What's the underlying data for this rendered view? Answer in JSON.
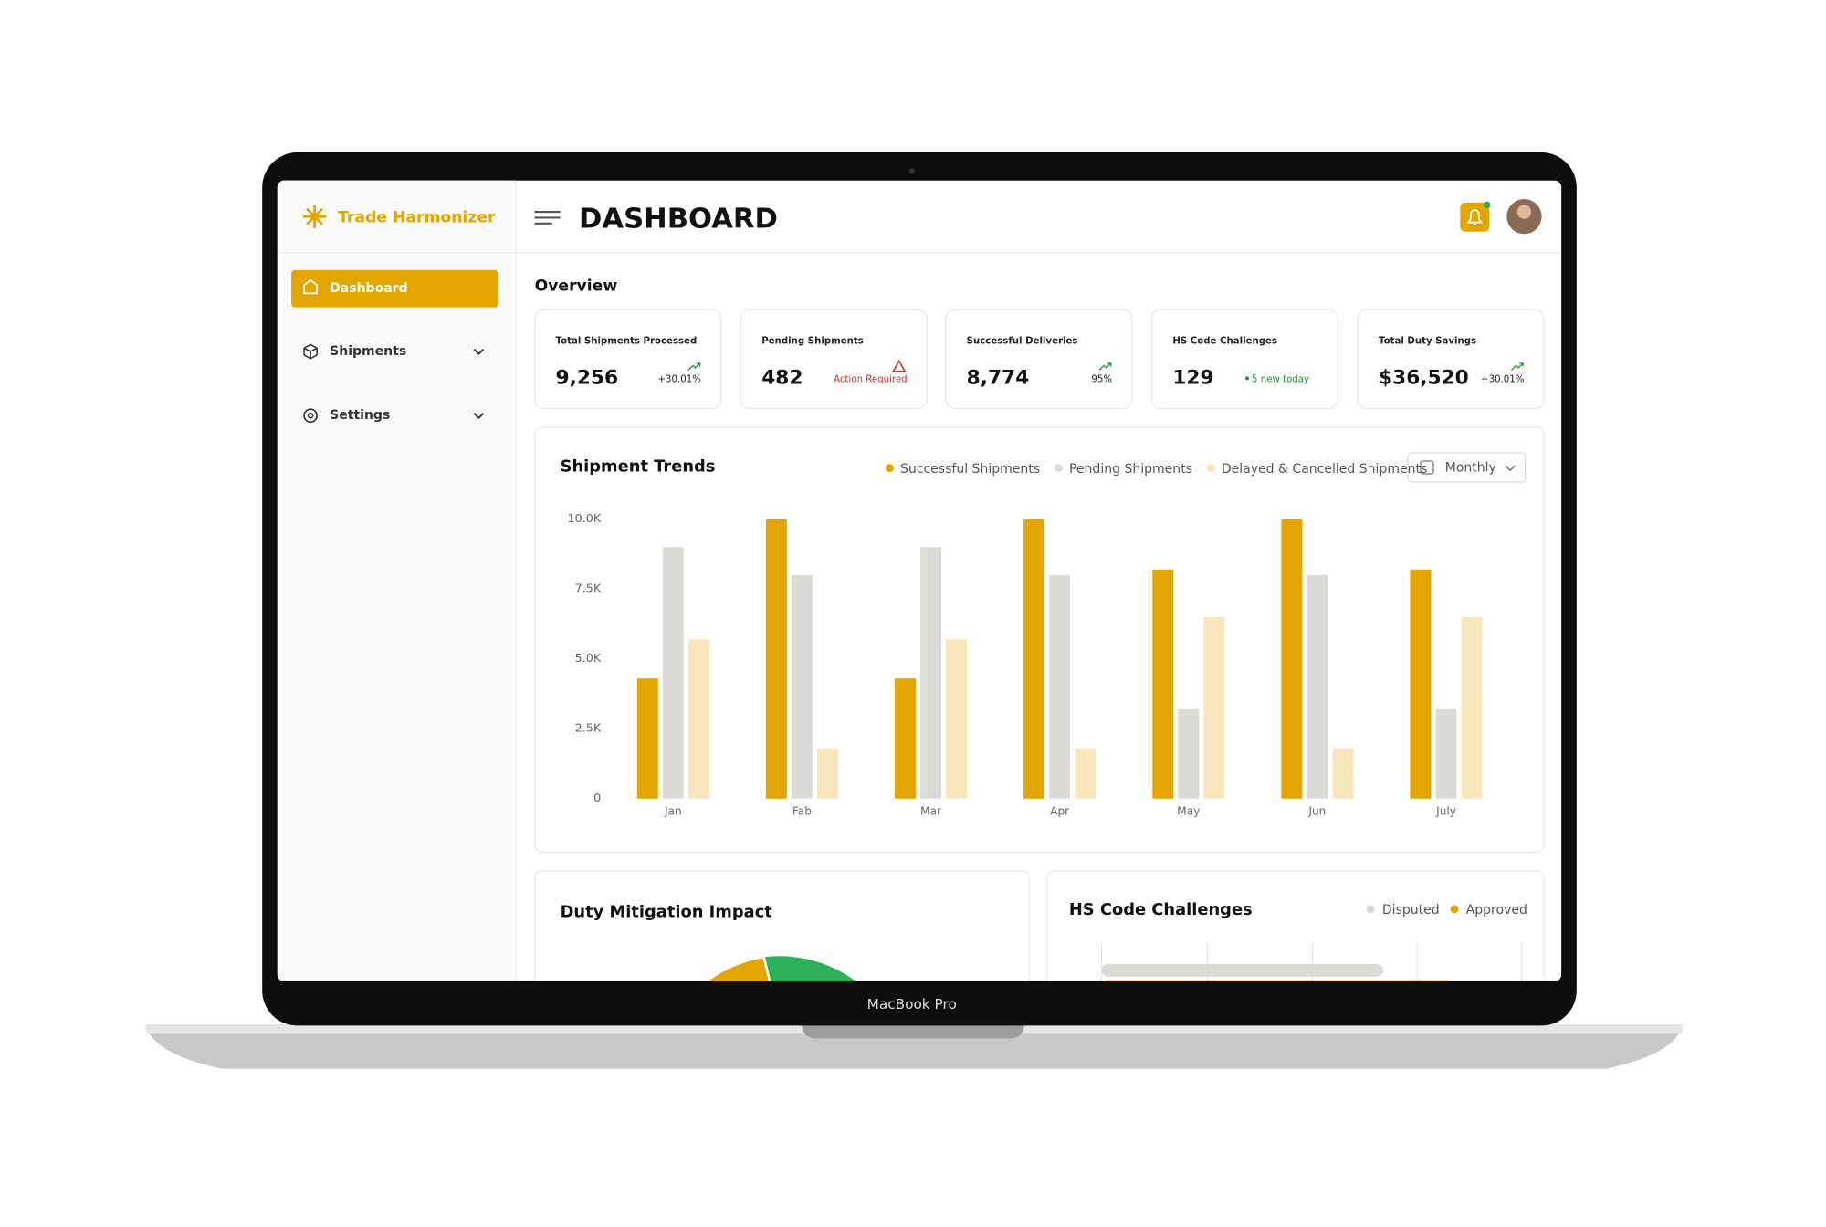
{
  "sidebar": {
    "brand": "Trade Harmonizer",
    "nav": [
      "Dashboard",
      "Shipments",
      "Settings"
    ]
  },
  "header": {
    "title": "DASHBOARD"
  },
  "overview": {
    "title": "Overview",
    "cards": [
      {
        "title": "Total Shipments Processed",
        "value": "9,256",
        "note": "+30.01%"
      },
      {
        "title": "Pending Shipments",
        "value": "482",
        "note": "Action Required"
      },
      {
        "title": "Successful Deliveries",
        "value": "8,774",
        "note": "95%"
      },
      {
        "title": "HS Code Challenges",
        "value": "129",
        "note": "5 new today"
      },
      {
        "title": "Total Duty Savings",
        "value": "$36,520",
        "note": "+30.01%"
      }
    ]
  },
  "shipment_trends": {
    "type": "bar",
    "title": "Shipment Trends",
    "period": "Monthly",
    "categories": [
      "Jan",
      "Fab",
      "Mar",
      "Apr",
      "May",
      "Jun",
      "July"
    ],
    "series": [
      {
        "name": "Successful Shipments",
        "color": "#e3a600",
        "values": [
          4300,
          10000,
          4300,
          10000,
          8200,
          10000,
          8200
        ]
      },
      {
        "name": "Pending Shipments",
        "color": "#dcdbd8",
        "values": [
          9000,
          8000,
          9000,
          8000,
          3200,
          8000,
          3200
        ]
      },
      {
        "name": "Delayed & Cancelled Shipments",
        "color": "#f8e6bd",
        "values": [
          5700,
          1800,
          5700,
          1800,
          6500,
          1800,
          6500
        ]
      }
    ],
    "ylim": [
      0,
      10000
    ],
    "yticks": [
      0,
      {
        "value": 2500,
        "label": "2.5K"
      },
      {
        "value": 5000,
        "label": "5.0K"
      },
      {
        "value": 7500,
        "label": "7.5K"
      },
      {
        "value": 10000,
        "label": "10.0K"
      }
    ]
  },
  "duty_mitigation": {
    "title": "Duty Mitigation Impact"
  },
  "hs_code_challenges": {
    "title": "HS Code Challenges",
    "legend": [
      "Disputed",
      "Approved"
    ]
  },
  "device_label": "MacBook Pro"
}
